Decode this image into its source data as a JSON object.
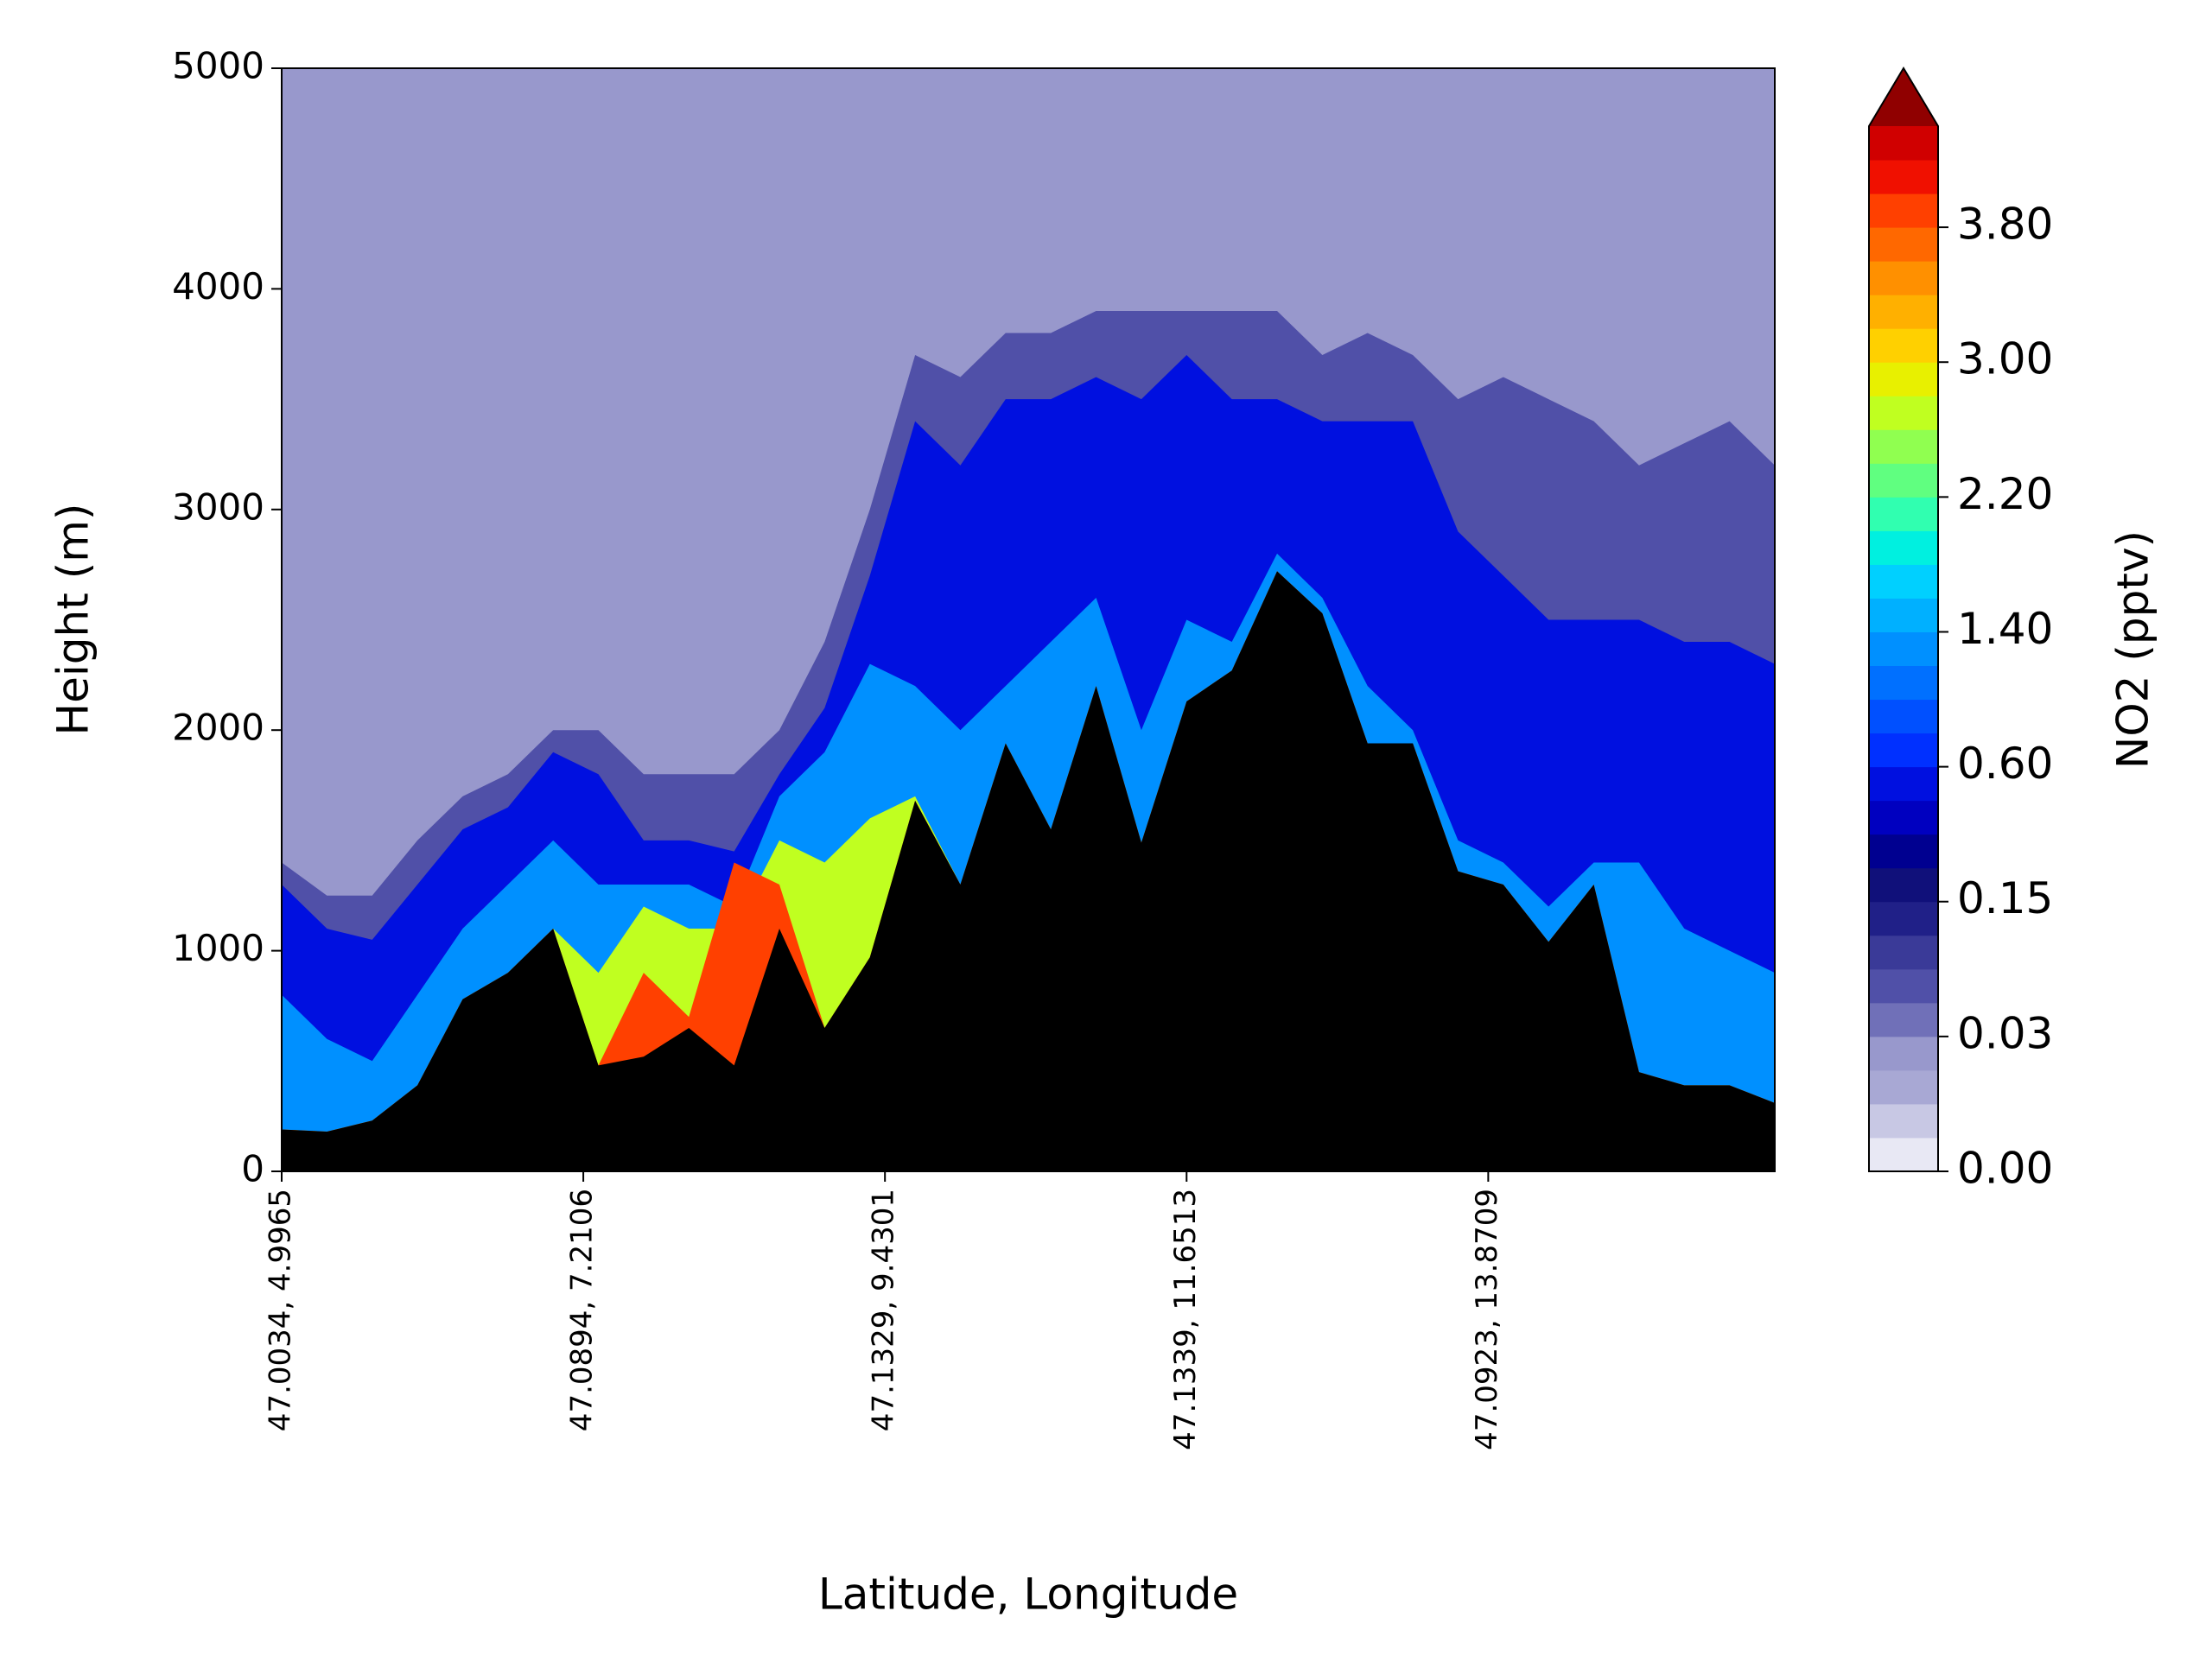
{
  "chart_data": {
    "type": "contour",
    "xlabel": "Latitude, Longitude",
    "ylabel": "Height (m)",
    "xlim": [
      0,
      99
    ],
    "xticks": [
      {
        "value": 0,
        "label": "47.0034, 4.9965"
      },
      {
        "value": 20,
        "label": "47.0894, 7.2106"
      },
      {
        "value": 40,
        "label": "47.1329, 9.4301"
      },
      {
        "value": 60,
        "label": "47.1339, 11.6513"
      },
      {
        "value": 80,
        "label": "47.0923, 13.8709"
      }
    ],
    "ylim": [
      0,
      5000
    ],
    "yticks": [
      0,
      1000,
      2000,
      3000,
      4000,
      5000
    ],
    "background_color": "#9898cc",
    "x": [
      0,
      3,
      6,
      9,
      12,
      15,
      18,
      21,
      24,
      27,
      30,
      33,
      36,
      39,
      42,
      45,
      48,
      51,
      54,
      57,
      60,
      63,
      66,
      69,
      72,
      75,
      78,
      81,
      84,
      87,
      90,
      93,
      96,
      99
    ],
    "contours": [
      {
        "color": "#5050a8",
        "heights": [
          1400,
          1250,
          1250,
          1500,
          1700,
          1800,
          2000,
          2000,
          1800,
          1800,
          1800,
          2000,
          2400,
          3000,
          3700,
          3600,
          3800,
          3800,
          3900,
          3900,
          3900,
          3900,
          3900,
          3700,
          3800,
          3700,
          3500,
          3600,
          3500,
          3400,
          3200,
          3300,
          3400,
          3200
        ]
      },
      {
        "color": "#0010e0",
        "heights": [
          1300,
          1100,
          1050,
          1300,
          1550,
          1650,
          1900,
          1800,
          1500,
          1500,
          1450,
          1800,
          2100,
          2700,
          3400,
          3200,
          3500,
          3500,
          3600,
          3500,
          3700,
          3500,
          3500,
          3400,
          3400,
          3400,
          2900,
          2700,
          2500,
          2500,
          2500,
          2400,
          2400,
          2300
        ]
      },
      {
        "color": "#0090ff",
        "heights": [
          800,
          600,
          500,
          800,
          1100,
          1300,
          1500,
          1300,
          1300,
          1300,
          1200,
          1700,
          1900,
          2300,
          2200,
          2000,
          2200,
          2400,
          2600,
          2000,
          2500,
          2400,
          2800,
          2600,
          2200,
          2000,
          1500,
          1400,
          1200,
          1400,
          1400,
          1100,
          1000,
          900
        ]
      },
      {
        "color": "#c0ff20",
        "heights": [
          190,
          180,
          230,
          390,
          780,
          900,
          1100,
          900,
          1200,
          1100,
          1100,
          1500,
          1400,
          1600,
          1700,
          1300,
          1940,
          1550,
          2200,
          1490,
          2130,
          2270,
          2720,
          2530,
          1940,
          1940,
          1360,
          1300,
          1040,
          1300,
          450,
          390,
          390,
          310
        ]
      },
      {
        "color": "#ff4000",
        "heights": [
          190,
          180,
          230,
          390,
          780,
          900,
          1100,
          480,
          900,
          700,
          1400,
          1300,
          650,
          970,
          1680,
          1300,
          1940,
          1550,
          2200,
          1490,
          2130,
          2270,
          2720,
          2530,
          1940,
          1940,
          1360,
          1300,
          1040,
          1300,
          450,
          390,
          390,
          310
        ]
      }
    ],
    "terrain": {
      "color": "#000000",
      "heights": [
        190,
        180,
        230,
        390,
        780,
        900,
        1100,
        480,
        520,
        650,
        480,
        1100,
        650,
        970,
        1680,
        1300,
        1940,
        1550,
        2200,
        1490,
        2130,
        2270,
        2720,
        2530,
        1940,
        1940,
        1360,
        1300,
        1040,
        1300,
        450,
        390,
        390,
        310
      ]
    },
    "colorbar": {
      "label": "NO2 (pptv)",
      "levels": [
        0,
        0.0075,
        0.015,
        0.0225,
        0.03,
        0.06,
        0.09,
        0.12,
        0.15,
        0.2625,
        0.375,
        0.4875,
        0.6,
        0.8,
        1.0,
        1.2,
        1.4,
        1.6,
        1.8,
        2.0,
        2.2,
        2.4,
        2.6,
        2.8,
        3.0,
        3.2,
        3.4,
        3.6,
        3.8,
        4.0,
        4.2,
        4.4
      ],
      "colors": [
        "#e8e8f4",
        "#c8c8e4",
        "#a8a8d4",
        "#9898cc",
        "#7070b8",
        "#5050a8",
        "#3a3a98",
        "#202088",
        "#10107a",
        "#000090",
        "#0000c0",
        "#0010e0",
        "#0030ff",
        "#0050ff",
        "#0070ff",
        "#0090ff",
        "#00b0ff",
        "#00d0ff",
        "#00f0e0",
        "#30ffb0",
        "#60ff80",
        "#90ff50",
        "#c0ff20",
        "#e8f000",
        "#ffd000",
        "#ffb000",
        "#ff9000",
        "#ff6800",
        "#ff4000",
        "#f01000",
        "#d00000"
      ],
      "over_color": "#900000",
      "ticks": [
        {
          "value": 0,
          "label": "0.00"
        },
        {
          "value": 0.03,
          "label": "0.03"
        },
        {
          "value": 0.15,
          "label": "0.15"
        },
        {
          "value": 0.6,
          "label": "0.60"
        },
        {
          "value": 1.4,
          "label": "1.40"
        },
        {
          "value": 2.2,
          "label": "2.20"
        },
        {
          "value": 3.0,
          "label": "3.00"
        },
        {
          "value": 3.8,
          "label": "3.80"
        }
      ]
    }
  }
}
